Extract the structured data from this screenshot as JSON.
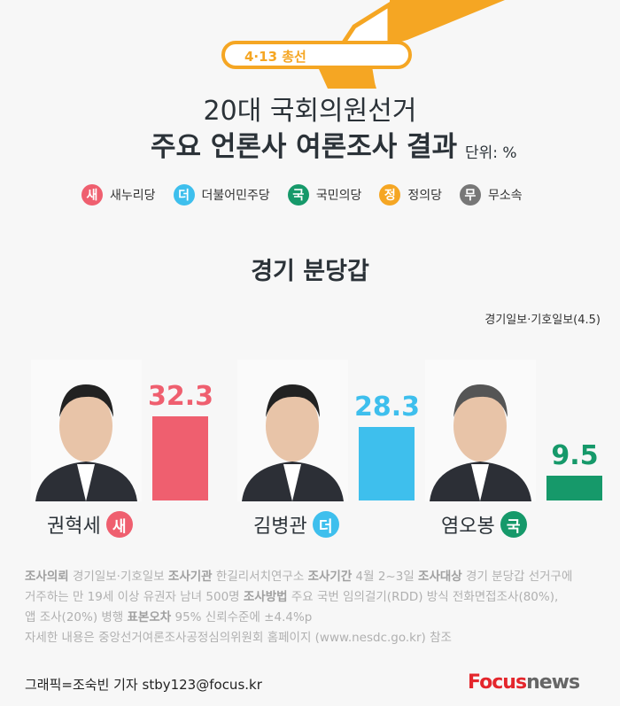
{
  "header": {
    "badge": "4·13 총선",
    "title_line1": "20대 국회의원선거",
    "title_line2": "주요 언론사 여론조사 결과",
    "unit": "단위: %"
  },
  "legend": [
    {
      "mark": "새",
      "label": "새누리당",
      "color": "#ef5f6f"
    },
    {
      "mark": "더",
      "label": "더불어민주당",
      "color": "#3ebfed"
    },
    {
      "mark": "국",
      "label": "국민의당",
      "color": "#16996a"
    },
    {
      "mark": "정",
      "label": "정의당",
      "color": "#f5a623"
    },
    {
      "mark": "무",
      "label": "무소속",
      "color": "#777777"
    }
  ],
  "chart_data": {
    "type": "bar",
    "title": "경기 분당갑",
    "source": "경기일보·기호일보(4.5)",
    "categories": [
      "권혁세",
      "김병관",
      "염오봉"
    ],
    "parties": [
      "새",
      "더",
      "국"
    ],
    "values": [
      32.3,
      28.3,
      9.5
    ],
    "value_labels": [
      "32.3",
      "28.3",
      "9.5"
    ],
    "colors": [
      "#ef5f6f",
      "#3ebfed",
      "#16996a"
    ]
  },
  "notes": {
    "l1": [
      [
        "조사의뢰",
        true
      ],
      [
        " 경기일보·기호일보 ",
        false
      ],
      [
        "조사기관",
        true
      ],
      [
        " 한길리서치연구소 ",
        false
      ],
      [
        "조사기간",
        true
      ],
      [
        " 4월 2~3일  ",
        false
      ],
      [
        "조사대상",
        true
      ],
      [
        " 경기 분당갑 선거구에",
        false
      ]
    ],
    "l2": [
      [
        "거주하는 만 19세 이상 유권자 남녀 500명  ",
        false
      ],
      [
        "조사방법",
        true
      ],
      [
        " 주요 국번 임의걸기(RDD) 방식 전화면접조사(80%),",
        false
      ]
    ],
    "l3": [
      [
        "앱 조사(20%) 병행 ",
        false
      ],
      [
        "표본오차",
        true
      ],
      [
        " 95% 신뢰수준에 ±4.4%p",
        false
      ]
    ],
    "l4": [
      [
        "자세한 내용은 중앙선거여론조사공정심의위원회 홈페이지 (www.nesdc.go.kr) 참조",
        false
      ]
    ]
  },
  "footer": {
    "credit": "그래픽=조숙빈 기자 stby123@focus.kr",
    "logo_focus": "Focus",
    "logo_news": "news",
    "logo_color": "#e4262c"
  }
}
